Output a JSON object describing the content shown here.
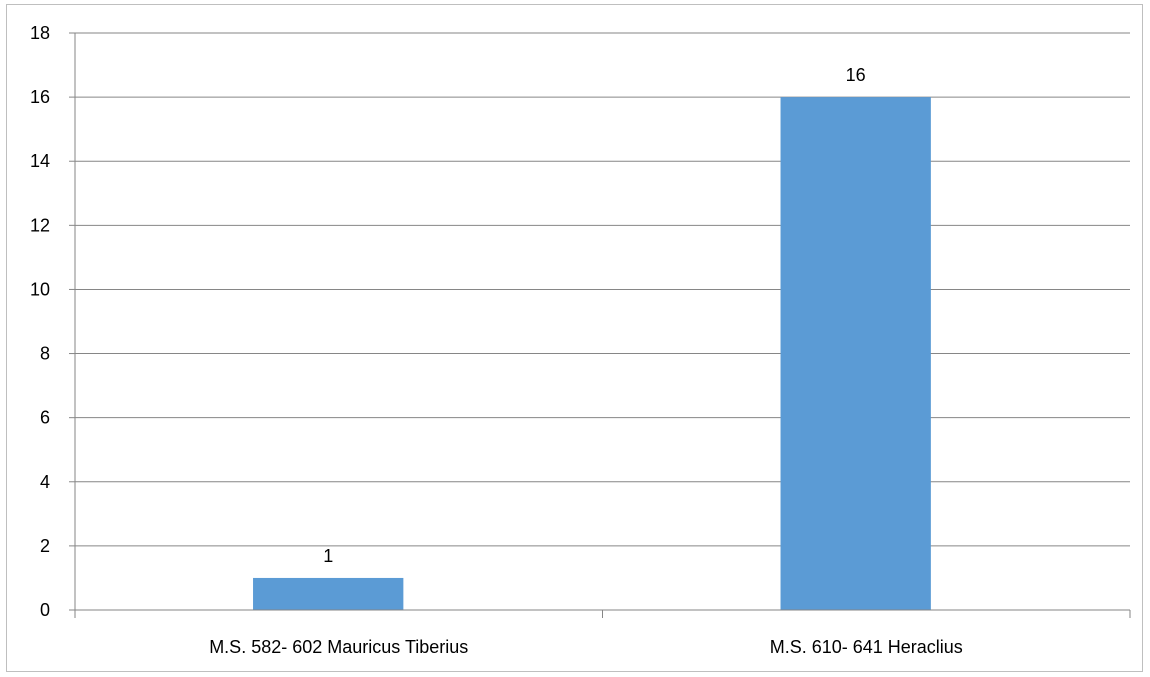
{
  "chart_data": {
    "type": "bar",
    "title": "",
    "xlabel": "",
    "ylabel": "",
    "categories": [
      "M.S. 582- 602 Mauricus Tiberius",
      "M.S. 610- 641 Heraclius"
    ],
    "values": [
      1,
      16
    ],
    "data_labels": [
      "1",
      "16"
    ],
    "ylim": [
      0,
      18
    ],
    "yticks": [
      "0",
      "2",
      "4",
      "6",
      "8",
      "10",
      "12",
      "14",
      "16",
      "18"
    ],
    "grid": true,
    "legend": "none",
    "bar_color": "#5b9bd5",
    "grid_color": "#868686"
  }
}
